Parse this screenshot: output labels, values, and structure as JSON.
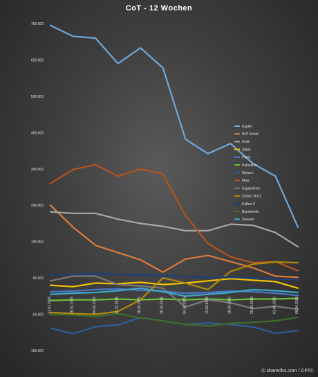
{
  "chart_data": {
    "type": "line",
    "title": "CoT - 12 Wochen",
    "xlabel": "",
    "ylabel": "",
    "ylim": [
      -150000,
      750000
    ],
    "y_ticks": [
      "750.000",
      "650.000",
      "550.000",
      "450.000",
      "350.000",
      "250.000",
      "150.000",
      "50.000",
      "-50.000",
      "-150.000"
    ],
    "y_tick_values": [
      750000,
      650000,
      550000,
      450000,
      350000,
      250000,
      150000,
      50000,
      -50000,
      -150000
    ],
    "categories": [
      "21.01.2025",
      "28.01.2025",
      "04.02.2025",
      "11.02.2025",
      "18.02.2025",
      "25.02.2025",
      "04.03.2025",
      "11.03.2025",
      "18.03.2025",
      "25.03.2025",
      "01.04.2025",
      "08.04.2025"
    ],
    "grid": false,
    "legend_position": "right",
    "series": [
      {
        "name": "Kupfer",
        "color": "#6fa8dc",
        "values": [
          745000,
          715000,
          710000,
          640000,
          683000,
          628000,
          432000,
          392000,
          420000,
          365000,
          330000,
          190000
        ]
      },
      {
        "name": "WTI Rohöl",
        "color": "#e07b39",
        "values": [
          250000,
          190000,
          140000,
          120000,
          100000,
          66000,
          102000,
          112000,
          95000,
          78000,
          55000,
          52000
        ]
      },
      {
        "name": "Gold",
        "color": "#a8a8a8",
        "values": [
          232000,
          228000,
          228000,
          212000,
          200000,
          192000,
          180000,
          180000,
          198000,
          195000,
          175000,
          136000
        ]
      },
      {
        "name": "Silber",
        "color": "#f5c400",
        "values": [
          30000,
          26000,
          36000,
          34000,
          38000,
          32000,
          36000,
          42000,
          48000,
          44000,
          40000,
          22000
        ]
      },
      {
        "name": "Platin",
        "color": "#4a78c8",
        "values": [
          12000,
          14000,
          18000,
          20000,
          16000,
          14000,
          8000,
          10000,
          14000,
          12000,
          8000,
          2000
        ]
      },
      {
        "name": "Palladium",
        "color": "#6abf3a",
        "values": [
          -12000,
          -10000,
          -10000,
          -8000,
          -10000,
          -8000,
          -10000,
          -8000,
          -10000,
          -8000,
          -8000,
          -6000
        ]
      },
      {
        "name": "Weizen",
        "color": "#2f5d9a",
        "values": [
          -88000,
          -103000,
          -84000,
          -79000,
          -59000,
          -68000,
          -78000,
          -74000,
          -78000,
          -85000,
          -102000,
          -95000
        ]
      },
      {
        "name": "Mais",
        "color": "#b5541a",
        "values": [
          310000,
          348000,
          362000,
          330000,
          350000,
          336000,
          222000,
          145000,
          108000,
          92000,
          95000,
          70000
        ]
      },
      {
        "name": "Sojabohnen",
        "color": "#7a7a7a",
        "values": [
          42000,
          55000,
          55000,
          32000,
          28000,
          22000,
          -30000,
          -10000,
          -18000,
          -34000,
          -28000,
          -36000
        ]
      },
      {
        "name": "Zucker No11",
        "color": "#b08a0e",
        "values": [
          -45000,
          -48000,
          -50000,
          -42000,
          -10000,
          50000,
          36000,
          18000,
          68000,
          88000,
          94000,
          92000
        ]
      },
      {
        "name": "Kaffee C",
        "color": "#1f3f7a",
        "values": [
          58000,
          60000,
          62000,
          60000,
          58000,
          56000,
          54000,
          52000,
          52000,
          50000,
          48000,
          45000
        ]
      },
      {
        "name": "Baumwolle",
        "color": "#3f6e2a",
        "values": [
          -50000,
          -52000,
          -56000,
          -48000,
          -60000,
          -68000,
          -78000,
          -82000,
          -75000,
          -72000,
          -68000,
          -58000
        ]
      },
      {
        "name": "Gesamt",
        "color": "#3fa8c8",
        "values": [
          5000,
          8000,
          10000,
          15000,
          22000,
          12000,
          0,
          5000,
          10000,
          18000,
          15000,
          10000
        ]
      }
    ]
  },
  "footer": {
    "credit": "© sharerlbs.com / CFTC"
  }
}
